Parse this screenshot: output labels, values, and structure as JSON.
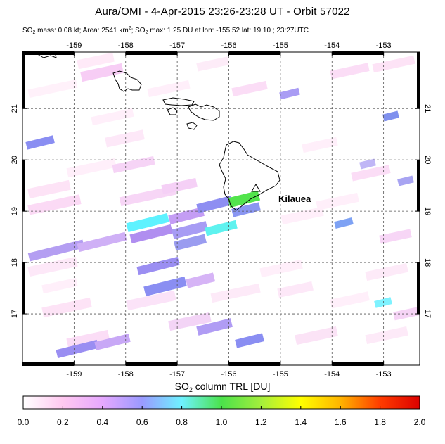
{
  "header": {
    "title": "Aura/OMI -  4-Apr-2015 23:26-23:28 UT - Orbit 57022",
    "stats": {
      "mass_label": "SO",
      "mass_sub": "2",
      "mass_text": " mass: 0.08 kt; Area: 2541 km",
      "area_sup": "2",
      "sep": "; SO",
      "max_sub": "2",
      "max_text": " max: 1.25 DU at lon: -155.52 lat: 19.10 ; 23:27UTC"
    }
  },
  "map": {
    "lon_range": [
      -160,
      -152.3
    ],
    "lat_range": [
      16,
      22.1
    ],
    "lon_ticks": [
      "-159",
      "-158",
      "-157",
      "-156",
      "-155",
      "-154",
      "-153"
    ],
    "lat_ticks": [
      "17",
      "18",
      "19",
      "20",
      "21"
    ],
    "gridlines": "dashed",
    "volcano": {
      "name": "Kilauea",
      "lon": -155.28,
      "lat": 19.41
    }
  },
  "colorbar": {
    "title_main": "SO",
    "title_sub": "2",
    "title_rest": " column TRL [DU]",
    "min": 0.0,
    "max": 2.0,
    "ticks": [
      "0.0",
      "0.2",
      "0.4",
      "0.6",
      "0.8",
      "1.0",
      "1.2",
      "1.4",
      "1.6",
      "1.8",
      "2.0"
    ],
    "colors": [
      "#ffffff",
      "#ffc8f0",
      "#e6a8ff",
      "#9a9aff",
      "#6ef2ff",
      "#4be24b",
      "#a4ee3c",
      "#ffff00",
      "#ffb400",
      "#ff3c00",
      "#dc0000"
    ]
  }
}
